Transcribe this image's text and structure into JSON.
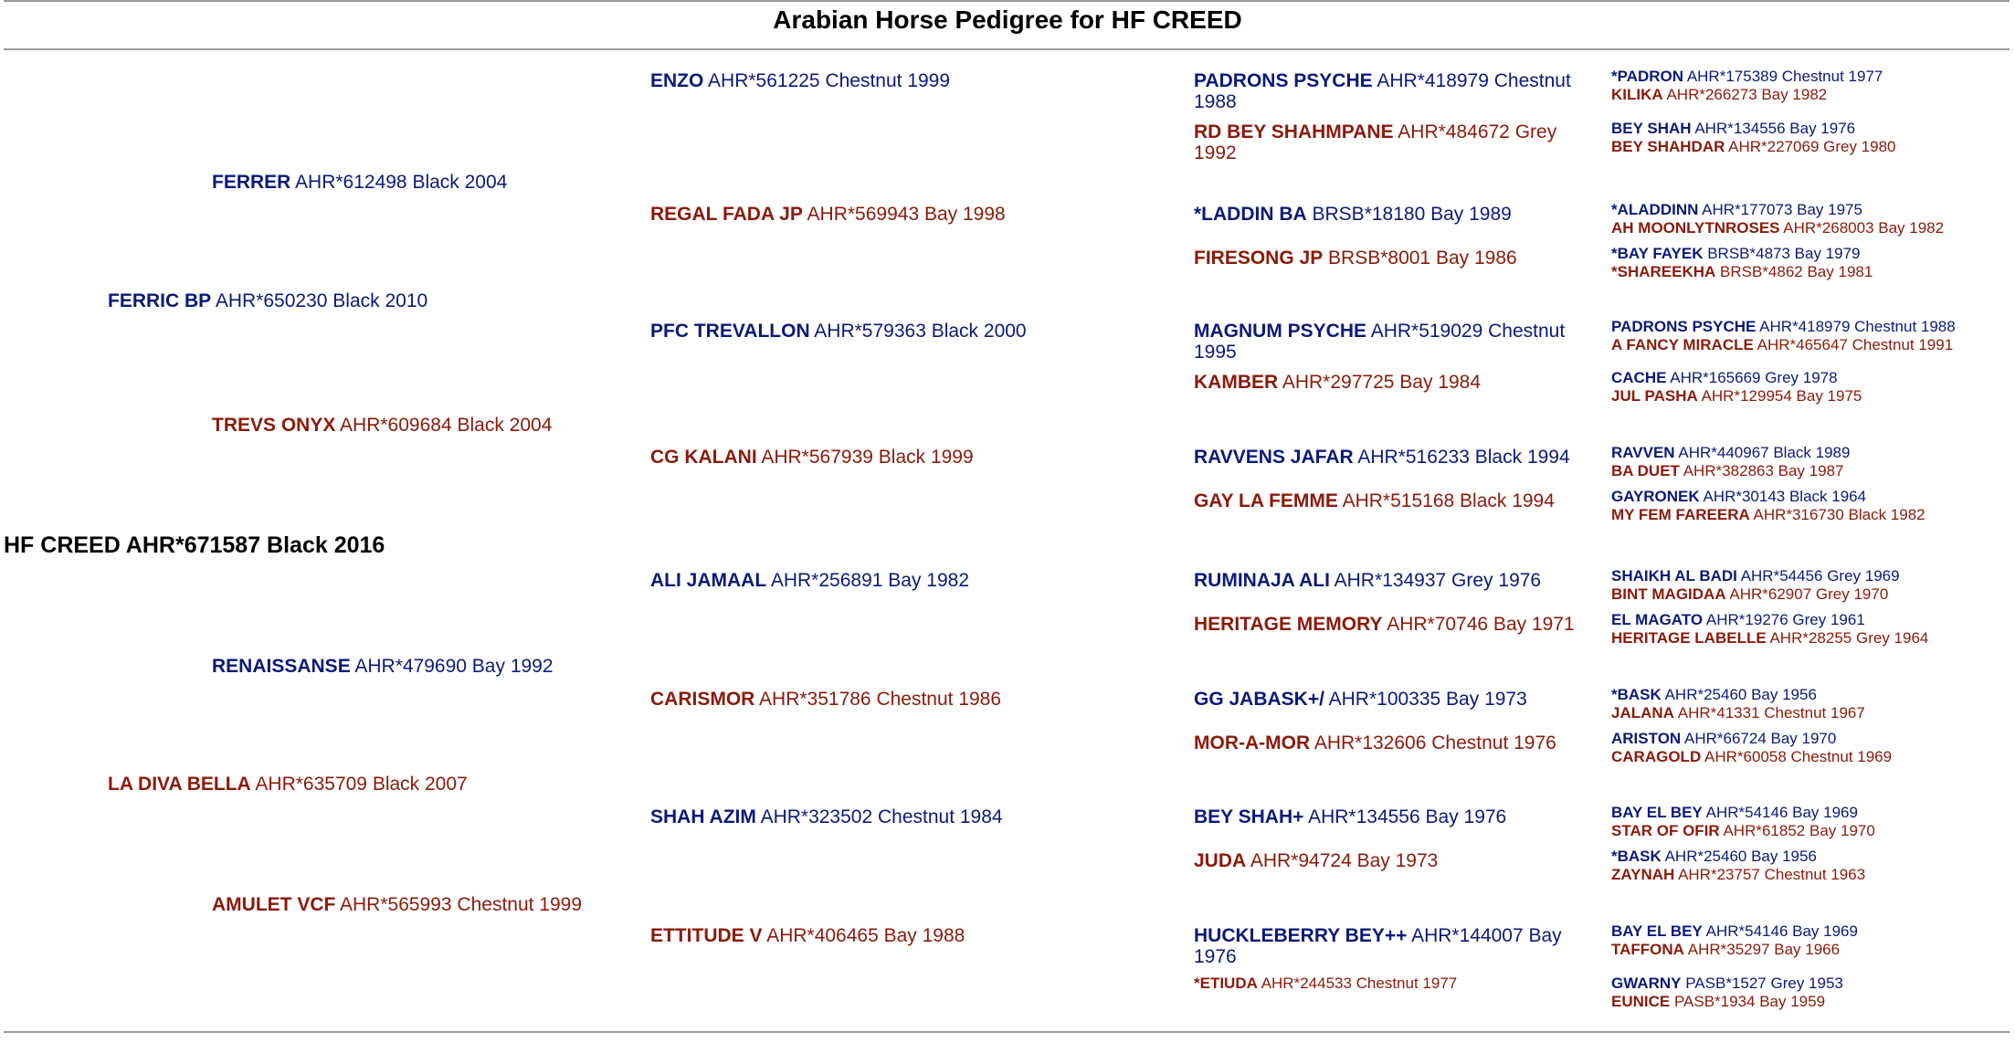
{
  "title": "Arabian Horse Pedigree for HF CREED",
  "subject": {
    "text": "HF CREED AHR*671587 Black 2016"
  },
  "sire": {
    "name": "FERRIC BP",
    "info": " AHR*650230 Black 2010"
  },
  "dam": {
    "name": "LA DIVA BELLA",
    "info": " AHR*635709 Black 2007"
  },
  "sire_sire": {
    "name": "FERRER",
    "info": " AHR*612498 Black 2004"
  },
  "sire_dam": {
    "name": "TREVS ONYX",
    "info": " AHR*609684 Black 2004"
  },
  "dam_sire": {
    "name": "RENAISSANSE",
    "info": " AHR*479690 Bay 1992"
  },
  "dam_dam": {
    "name": "AMULET VCF",
    "info": " AHR*565993 Chestnut 1999"
  },
  "g3": [
    {
      "name": "ENZO",
      "info": " AHR*561225 Chestnut 1999"
    },
    {
      "name": "REGAL FADA JP",
      "info": " AHR*569943 Bay 1998"
    },
    {
      "name": "PFC TREVALLON",
      "info": " AHR*579363 Black 2000"
    },
    {
      "name": "CG KALANI",
      "info": " AHR*567939 Black 1999"
    },
    {
      "name": "ALI JAMAAL",
      "info": " AHR*256891 Bay 1982"
    },
    {
      "name": "CARISMOR",
      "info": " AHR*351786 Chestnut 1986"
    },
    {
      "name": "SHAH AZIM",
      "info": " AHR*323502 Chestnut 1984"
    },
    {
      "name": "ETTITUDE V",
      "info": " AHR*406465 Bay 1988"
    }
  ],
  "g4": [
    {
      "name": "PADRONS PSYCHE",
      "info": " AHR*418979 Chestnut 1988"
    },
    {
      "name": "RD BEY SHAHMPANE",
      "info": " AHR*484672 Grey 1992"
    },
    {
      "name": "*LADDIN BA",
      "info": " BRSB*18180 Bay 1989"
    },
    {
      "name": "FIRESONG JP",
      "info": " BRSB*8001 Bay 1986"
    },
    {
      "name": "MAGNUM PSYCHE",
      "info": " AHR*519029 Chestnut 1995"
    },
    {
      "name": "KAMBER",
      "info": " AHR*297725 Bay 1984"
    },
    {
      "name": "RAVVENS JAFAR",
      "info": " AHR*516233 Black 1994"
    },
    {
      "name": "GAY LA FEMME",
      "info": " AHR*515168 Black 1994"
    },
    {
      "name": "RUMINAJA ALI",
      "info": " AHR*134937 Grey 1976"
    },
    {
      "name": "HERITAGE MEMORY",
      "info": " AHR*70746 Bay 1971"
    },
    {
      "name": "GG JABASK+/",
      "info": " AHR*100335 Bay 1973"
    },
    {
      "name": "MOR-A-MOR",
      "info": " AHR*132606 Chestnut 1976"
    },
    {
      "name": "BEY SHAH+",
      "info": " AHR*134556 Bay 1976"
    },
    {
      "name": "JUDA",
      "info": " AHR*94724 Bay 1973"
    },
    {
      "name": "HUCKLEBERRY BEY++",
      "info": " AHR*144007 Bay 1976"
    },
    {
      "name": "*ETIUDA",
      "info": " AHR*244533 Chestnut 1977"
    }
  ],
  "g5": [
    {
      "name": "*PADRON",
      "info": " AHR*175389 Chestnut 1977"
    },
    {
      "name": "KILIKA",
      "info": " AHR*266273 Bay 1982"
    },
    {
      "name": "BEY SHAH",
      "info": " AHR*134556 Bay 1976"
    },
    {
      "name": "BEY SHAHDAR",
      "info": " AHR*227069 Grey 1980"
    },
    {
      "name": "*ALADDINN",
      "info": " AHR*177073 Bay 1975"
    },
    {
      "name": "AH MOONLYTNROSES",
      "info": " AHR*268003 Bay 1982"
    },
    {
      "name": "*BAY FAYEK",
      "info": " BRSB*4873 Bay 1979"
    },
    {
      "name": "*SHAREEKHA",
      "info": " BRSB*4862 Bay 1981"
    },
    {
      "name": "PADRONS PSYCHE",
      "info": " AHR*418979 Chestnut 1988"
    },
    {
      "name": "A FANCY MIRACLE",
      "info": " AHR*465647 Chestnut 1991"
    },
    {
      "name": "CACHE",
      "info": " AHR*165669 Grey 1978"
    },
    {
      "name": "JUL PASHA",
      "info": " AHR*129954 Bay 1975"
    },
    {
      "name": "RAVVEN",
      "info": " AHR*440967 Black 1989"
    },
    {
      "name": "BA DUET",
      "info": " AHR*382863 Bay 1987"
    },
    {
      "name": "GAYRONEK",
      "info": " AHR*30143 Black 1964"
    },
    {
      "name": "MY FEM FAREERA",
      "info": " AHR*316730 Black 1982"
    },
    {
      "name": "SHAIKH AL BADI",
      "info": " AHR*54456 Grey 1969"
    },
    {
      "name": "BINT MAGIDAA",
      "info": " AHR*62907 Grey 1970"
    },
    {
      "name": "EL MAGATO",
      "info": " AHR*19276 Grey 1961"
    },
    {
      "name": "HERITAGE LABELLE",
      "info": " AHR*28255 Grey 1964"
    },
    {
      "name": "*BASK",
      "info": " AHR*25460 Bay 1956"
    },
    {
      "name": "JALANA",
      "info": " AHR*41331 Chestnut 1967"
    },
    {
      "name": "ARISTON",
      "info": " AHR*66724 Bay 1970"
    },
    {
      "name": "CARAGOLD",
      "info": " AHR*60058 Chestnut 1969"
    },
    {
      "name": "BAY EL BEY",
      "info": " AHR*54146 Bay 1969"
    },
    {
      "name": "STAR OF OFIR",
      "info": " AHR*61852 Bay 1970"
    },
    {
      "name": "*BASK",
      "info": " AHR*25460 Bay 1956"
    },
    {
      "name": "ZAYNAH",
      "info": " AHR*23757 Chestnut 1963"
    },
    {
      "name": "BAY EL BEY",
      "info": " AHR*54146 Bay 1969"
    },
    {
      "name": "TAFFONA",
      "info": " AHR*35297 Bay 1966"
    },
    {
      "name": "GWARNY",
      "info": " PASB*1527 Grey 1953"
    },
    {
      "name": "EUNICE",
      "info": " PASB*1934 Bay 1959"
    }
  ]
}
